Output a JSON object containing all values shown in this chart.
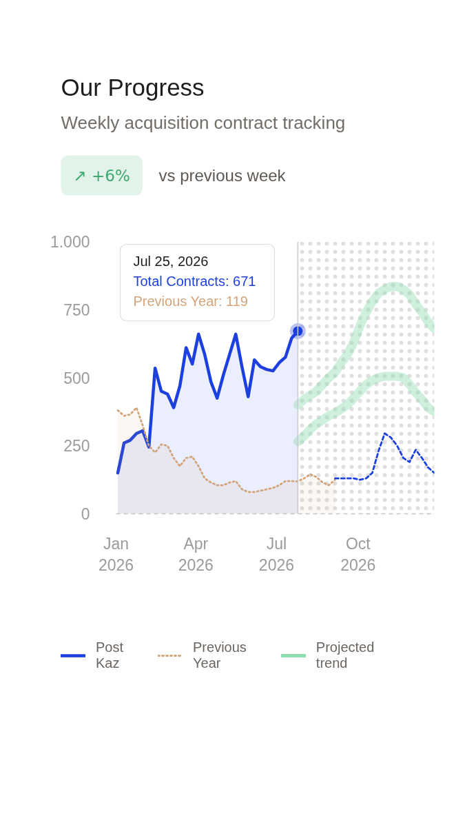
{
  "chart_data": {
    "type": "line",
    "title": "Our Progress",
    "subtitle": "Weekly acquisition contract tracking",
    "annotations": [
      "↗ +6%",
      "vs previous week",
      "Jul 25, 2026\nTotal Contracts: 671\nPrevious Year: 119"
    ],
    "xlim": [
      "2026-01-01",
      "2026-12-26"
    ],
    "xticks": [
      {
        "value": "2026-01-01",
        "label": "Jan\n2026"
      },
      {
        "value": "2026-04-01",
        "label": "Apr\n2026"
      },
      {
        "value": "2026-07-01",
        "label": "Jul\n2026"
      },
      {
        "value": "2026-10-01",
        "label": "Oct\n2026"
      }
    ],
    "ylim": [
      0,
      1000
    ],
    "yticks": [
      0,
      250,
      500,
      750,
      {
        "value": 1000,
        "label": "1.000"
      }
    ],
    "legend": "bottom",
    "bands": [
      {
        "axis": "x",
        "from": "2026-07-25",
        "to": "2026-12-26",
        "color": "#e0e0e0"
      }
    ],
    "ref_lines": [
      {
        "axis": "x",
        "value": "2026-07-25",
        "color": "#c6c8d2"
      }
    ],
    "series": [
      {
        "name": "Post Kaz",
        "type": "area",
        "color": "#1c3fdf",
        "x": [
          "2026-01-03",
          "2026-01-10",
          "2026-01-17",
          "2026-01-24",
          "2026-01-31",
          "2026-02-07",
          "2026-02-14",
          "2026-02-21",
          "2026-02-28",
          "2026-03-07",
          "2026-03-14",
          "2026-03-21",
          "2026-03-28",
          "2026-04-04",
          "2026-04-11",
          "2026-04-18",
          "2026-04-25",
          "2026-05-02",
          "2026-05-09",
          "2026-05-16",
          "2026-05-23",
          "2026-05-30",
          "2026-06-06",
          "2026-06-13",
          "2026-06-20",
          "2026-06-27",
          "2026-07-04",
          "2026-07-11",
          "2026-07-18",
          "2026-07-25"
        ],
        "values": [
          150,
          260,
          270,
          295,
          305,
          245,
          535,
          450,
          440,
          390,
          470,
          610,
          550,
          660,
          585,
          485,
          425,
          510,
          585,
          660,
          540,
          430,
          565,
          540,
          530,
          525,
          555,
          575,
          645,
          671
        ]
      },
      {
        "name": "Previous Year",
        "type": "area",
        "color": "#d3a47a",
        "line_style": "dotted",
        "x": [
          "2026-01-03",
          "2026-01-10",
          "2026-01-17",
          "2026-01-24",
          "2026-01-31",
          "2026-02-07",
          "2026-02-14",
          "2026-02-21",
          "2026-02-28",
          "2026-03-07",
          "2026-03-14",
          "2026-03-21",
          "2026-03-28",
          "2026-04-04",
          "2026-04-11",
          "2026-04-18",
          "2026-04-25",
          "2026-05-02",
          "2026-05-09",
          "2026-05-16",
          "2026-05-23",
          "2026-05-30",
          "2026-06-06",
          "2026-06-13",
          "2026-06-20",
          "2026-06-27",
          "2026-07-04",
          "2026-07-11",
          "2026-07-18",
          "2026-07-25",
          "2026-08-01",
          "2026-08-08",
          "2026-08-15",
          "2026-08-22",
          "2026-08-29",
          "2026-09-05"
        ],
        "values": [
          380,
          360,
          365,
          390,
          325,
          250,
          225,
          255,
          250,
          205,
          175,
          205,
          210,
          175,
          130,
          115,
          105,
          105,
          115,
          120,
          90,
          80,
          80,
          85,
          90,
          95,
          105,
          120,
          120,
          119,
          130,
          145,
          135,
          115,
          105,
          125
        ]
      },
      {
        "color": "#1c3fdf",
        "line_style": "dashed",
        "x": [
          "2026-09-05",
          "2026-09-12",
          "2026-09-19",
          "2026-09-26",
          "2026-10-03",
          "2026-10-10",
          "2026-10-17",
          "2026-10-24",
          "2026-10-31",
          "2026-11-07",
          "2026-11-14",
          "2026-11-21",
          "2026-11-28",
          "2026-12-05",
          "2026-12-12",
          "2026-12-19",
          "2026-12-26"
        ],
        "values": [
          130,
          130,
          130,
          130,
          125,
          130,
          150,
          230,
          295,
          280,
          250,
          205,
          190,
          235,
          205,
          170,
          150
        ]
      },
      {
        "name": "Projected trend",
        "color": "#8edcb0",
        "x": [
          "2026-07-25",
          "2026-08-01",
          "2026-08-08",
          "2026-08-15",
          "2026-08-22",
          "2026-08-29",
          "2026-09-05",
          "2026-09-12",
          "2026-09-19",
          "2026-09-26",
          "2026-10-03",
          "2026-10-10",
          "2026-10-17",
          "2026-10-24",
          "2026-10-31",
          "2026-11-07",
          "2026-11-14",
          "2026-11-21",
          "2026-11-28",
          "2026-12-05",
          "2026-12-12",
          "2026-12-19",
          "2026-12-26"
        ],
        "values": [
          400,
          420,
          435,
          450,
          475,
          500,
          520,
          555,
          585,
          630,
          690,
          740,
          780,
          810,
          825,
          835,
          835,
          825,
          805,
          770,
          740,
          705,
          680
        ]
      },
      {
        "color": "#8edcb0",
        "x": [
          "2026-07-25",
          "2026-08-01",
          "2026-08-08",
          "2026-08-15",
          "2026-08-22",
          "2026-08-29",
          "2026-09-05",
          "2026-09-12",
          "2026-09-19",
          "2026-09-26",
          "2026-10-03",
          "2026-10-10",
          "2026-10-17",
          "2026-10-24",
          "2026-10-31",
          "2026-11-07",
          "2026-11-14",
          "2026-11-21",
          "2026-11-28",
          "2026-12-05",
          "2026-12-12",
          "2026-12-19",
          "2026-12-26"
        ],
        "values": [
          265,
          285,
          310,
          330,
          345,
          360,
          370,
          385,
          400,
          425,
          450,
          475,
          490,
          500,
          505,
          505,
          505,
          500,
          475,
          445,
          420,
          390,
          375
        ]
      },
      {
        "type": "scatter",
        "marker": "circle",
        "color": "#1c3fdf",
        "x": [
          "2026-07-25"
        ],
        "values": [
          671
        ]
      }
    ]
  }
}
